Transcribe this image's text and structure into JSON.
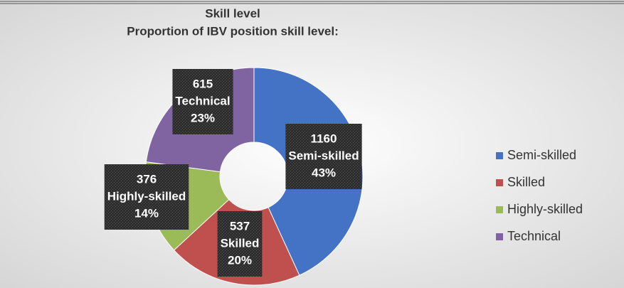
{
  "chart_data": {
    "type": "donut",
    "title": "Skill level",
    "subtitle": "Proportion of IBV position skill level:",
    "categories": [
      "Semi-skilled",
      "Skilled",
      "Highly-skilled",
      "Technical"
    ],
    "values": [
      1160,
      537,
      376,
      615
    ],
    "percent_labels": [
      "43%",
      "20%",
      "14%",
      "23%"
    ],
    "colors": [
      "#4472c4",
      "#c0504d",
      "#9bbb59",
      "#8064a2"
    ],
    "legend": "right"
  }
}
